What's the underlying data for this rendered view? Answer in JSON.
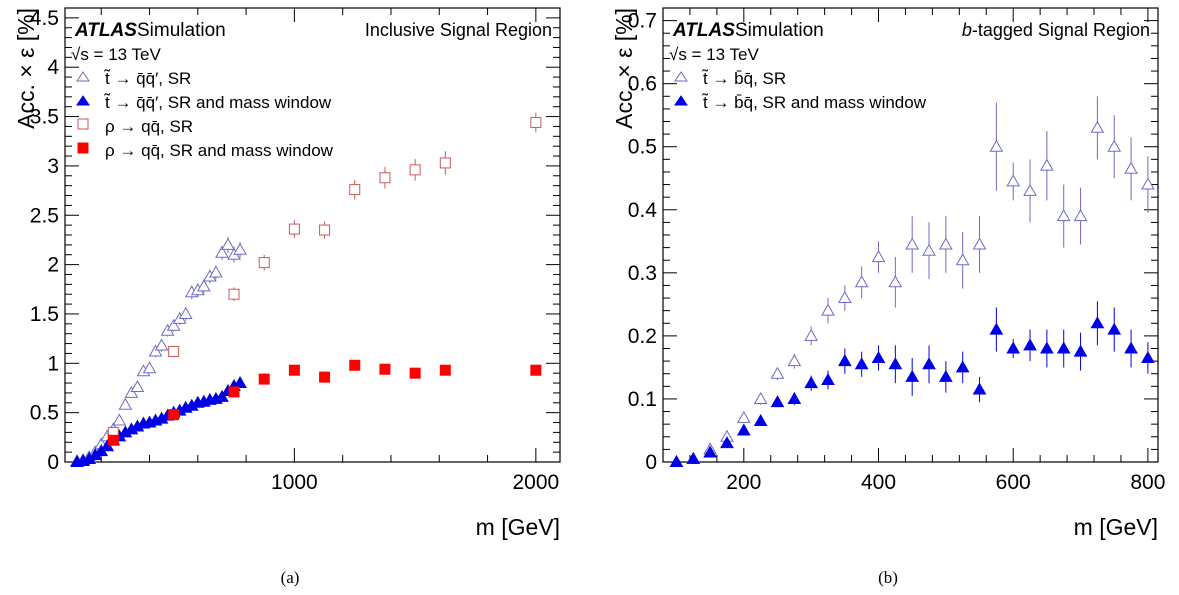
{
  "chart_data": [
    {
      "id": "a",
      "type": "scatter",
      "caption": "(a)",
      "xlabel": "m [GeV]",
      "ylabel": "Acc. × ε [%]",
      "xlim": [
        50,
        2100
      ],
      "ylim": [
        0,
        4.6
      ],
      "xticks": [
        {
          "v": 1000,
          "l": "1000"
        },
        {
          "v": 2000,
          "l": "2000"
        }
      ],
      "yticks": [
        {
          "v": 0,
          "l": "0"
        },
        {
          "v": 0.5,
          "l": "0.5"
        },
        {
          "v": 1,
          "l": "1"
        },
        {
          "v": 1.5,
          "l": "1.5"
        },
        {
          "v": 2,
          "l": "2"
        },
        {
          "v": 2.5,
          "l": "2.5"
        },
        {
          "v": 3,
          "l": "3"
        },
        {
          "v": 3.5,
          "l": "3.5"
        },
        {
          "v": 4,
          "l": "4"
        },
        {
          "v": 4.5,
          "l": "4.5"
        }
      ],
      "atlas_label": "ATLAS",
      "atlas_sublabel": "Simulation",
      "energy_label": "√s = 13 TeV",
      "region_label": "Inclusive Signal Region",
      "region_label_italic": "",
      "series": [
        {
          "name": "t̃ → q̄q̄′, SR",
          "marker": "triangle",
          "filled": false,
          "color": "#6b6bc4",
          "points": [
            [
              100,
              0.01,
              0.01
            ],
            [
              125,
              0.02,
              0.01
            ],
            [
              150,
              0.05,
              0.01
            ],
            [
              175,
              0.1,
              0.02
            ],
            [
              200,
              0.18,
              0.02
            ],
            [
              225,
              0.26,
              0.03
            ],
            [
              250,
              0.33,
              0.03
            ],
            [
              275,
              0.42,
              0.04
            ],
            [
              300,
              0.58,
              0.04
            ],
            [
              325,
              0.7,
              0.04
            ],
            [
              350,
              0.76,
              0.05
            ],
            [
              375,
              0.92,
              0.05
            ],
            [
              400,
              0.95,
              0.05
            ],
            [
              425,
              1.12,
              0.06
            ],
            [
              450,
              1.18,
              0.06
            ],
            [
              475,
              1.33,
              0.06
            ],
            [
              500,
              1.38,
              0.06
            ],
            [
              525,
              1.45,
              0.06
            ],
            [
              550,
              1.5,
              0.07
            ],
            [
              575,
              1.72,
              0.07
            ],
            [
              600,
              1.74,
              0.07
            ],
            [
              625,
              1.78,
              0.07
            ],
            [
              650,
              1.88,
              0.07
            ],
            [
              675,
              1.92,
              0.07
            ],
            [
              700,
              2.12,
              0.07
            ],
            [
              725,
              2.2,
              0.08
            ],
            [
              750,
              2.1,
              0.08
            ],
            [
              775,
              2.15,
              0.08
            ]
          ]
        },
        {
          "name": "t̃ → q̄q̄′, SR and mass window",
          "marker": "triangle",
          "filled": true,
          "color": "#0000e6",
          "points": [
            [
              100,
              0.0,
              0.0
            ],
            [
              125,
              0.01,
              0.0
            ],
            [
              150,
              0.03,
              0.01
            ],
            [
              175,
              0.07,
              0.01
            ],
            [
              200,
              0.11,
              0.01
            ],
            [
              225,
              0.16,
              0.02
            ],
            [
              250,
              0.22,
              0.02
            ],
            [
              275,
              0.26,
              0.02
            ],
            [
              300,
              0.3,
              0.02
            ],
            [
              325,
              0.33,
              0.02
            ],
            [
              350,
              0.36,
              0.02
            ],
            [
              375,
              0.39,
              0.02
            ],
            [
              400,
              0.4,
              0.03
            ],
            [
              425,
              0.42,
              0.03
            ],
            [
              450,
              0.44,
              0.03
            ],
            [
              475,
              0.47,
              0.03
            ],
            [
              500,
              0.5,
              0.03
            ],
            [
              525,
              0.52,
              0.03
            ],
            [
              550,
              0.55,
              0.03
            ],
            [
              575,
              0.57,
              0.03
            ],
            [
              600,
              0.6,
              0.03
            ],
            [
              625,
              0.61,
              0.03
            ],
            [
              650,
              0.63,
              0.03
            ],
            [
              675,
              0.64,
              0.03
            ],
            [
              700,
              0.66,
              0.04
            ],
            [
              725,
              0.72,
              0.04
            ],
            [
              750,
              0.77,
              0.04
            ],
            [
              775,
              0.8,
              0.04
            ]
          ]
        },
        {
          "name": "ρ → qq̄, SR",
          "marker": "square",
          "filled": false,
          "color": "#c85a5a",
          "points": [
            [
              250,
              0.3,
              0.05
            ],
            [
              500,
              1.12,
              0.05
            ],
            [
              750,
              1.7,
              0.07
            ],
            [
              875,
              2.02,
              0.08
            ],
            [
              1000,
              2.36,
              0.09
            ],
            [
              1125,
              2.35,
              0.09
            ],
            [
              1250,
              2.76,
              0.1
            ],
            [
              1375,
              2.88,
              0.11
            ],
            [
              1500,
              2.96,
              0.11
            ],
            [
              1625,
              3.03,
              0.12
            ],
            [
              2000,
              3.44,
              0.1
            ]
          ]
        },
        {
          "name": "ρ → qq̄, SR and mass window",
          "marker": "square",
          "filled": true,
          "color": "#ff0000",
          "points": [
            [
              250,
              0.22,
              0.03
            ],
            [
              500,
              0.48,
              0.03
            ],
            [
              750,
              0.71,
              0.04
            ],
            [
              875,
              0.84,
              0.04
            ],
            [
              1000,
              0.93,
              0.04
            ],
            [
              1125,
              0.86,
              0.04
            ],
            [
              1250,
              0.98,
              0.04
            ],
            [
              1375,
              0.94,
              0.04
            ],
            [
              1500,
              0.9,
              0.04
            ],
            [
              1625,
              0.93,
              0.04
            ],
            [
              2000,
              0.93,
              0.03
            ]
          ]
        }
      ]
    },
    {
      "id": "b",
      "type": "scatter",
      "caption": "(b)",
      "xlabel": "m [GeV]",
      "ylabel": "Acc. × ε [%]",
      "xlim": [
        80,
        815
      ],
      "ylim": [
        0,
        0.72
      ],
      "xticks": [
        {
          "v": 200,
          "l": "200"
        },
        {
          "v": 400,
          "l": "400"
        },
        {
          "v": 600,
          "l": "600"
        },
        {
          "v": 800,
          "l": "800"
        }
      ],
      "yticks": [
        {
          "v": 0,
          "l": "0"
        },
        {
          "v": 0.1,
          "l": "0.1"
        },
        {
          "v": 0.2,
          "l": "0.2"
        },
        {
          "v": 0.3,
          "l": "0.3"
        },
        {
          "v": 0.4,
          "l": "0.4"
        },
        {
          "v": 0.5,
          "l": "0.5"
        },
        {
          "v": 0.6,
          "l": "0.6"
        },
        {
          "v": 0.7,
          "l": "0.7"
        }
      ],
      "atlas_label": "ATLAS",
      "atlas_sublabel": "Simulation",
      "energy_label": "√s = 13 TeV",
      "region_label": "-tagged Signal Region",
      "region_label_italic": "b",
      "series": [
        {
          "name": "t̃ → b̄q̄, SR",
          "marker": "triangle",
          "filled": false,
          "color": "#6b6bc4",
          "points": [
            [
              100,
              0.0,
              0.003
            ],
            [
              125,
              0.005,
              0.004
            ],
            [
              150,
              0.02,
              0.005
            ],
            [
              175,
              0.04,
              0.006
            ],
            [
              200,
              0.07,
              0.008
            ],
            [
              225,
              0.1,
              0.009
            ],
            [
              250,
              0.14,
              0.01
            ],
            [
              275,
              0.16,
              0.012
            ],
            [
              300,
              0.2,
              0.015
            ],
            [
              325,
              0.24,
              0.02
            ],
            [
              350,
              0.26,
              0.02
            ],
            [
              375,
              0.285,
              0.025
            ],
            [
              400,
              0.325,
              0.025
            ],
            [
              425,
              0.285,
              0.04
            ],
            [
              450,
              0.345,
              0.045
            ],
            [
              475,
              0.335,
              0.045
            ],
            [
              500,
              0.345,
              0.045
            ],
            [
              525,
              0.32,
              0.045
            ],
            [
              550,
              0.345,
              0.045
            ],
            [
              575,
              0.5,
              0.07
            ],
            [
              600,
              0.445,
              0.03
            ],
            [
              625,
              0.43,
              0.05
            ],
            [
              650,
              0.47,
              0.055
            ],
            [
              675,
              0.39,
              0.05
            ],
            [
              700,
              0.39,
              0.045
            ],
            [
              725,
              0.53,
              0.05
            ],
            [
              750,
              0.5,
              0.05
            ],
            [
              775,
              0.465,
              0.05
            ],
            [
              800,
              0.44,
              0.045
            ]
          ]
        },
        {
          "name": "t̃ → b̄q̄, SR and mass window",
          "marker": "triangle",
          "filled": true,
          "color": "#0000e6",
          "points": [
            [
              100,
              0.0,
              0.002
            ],
            [
              125,
              0.005,
              0.003
            ],
            [
              150,
              0.015,
              0.004
            ],
            [
              175,
              0.03,
              0.005
            ],
            [
              200,
              0.05,
              0.006
            ],
            [
              225,
              0.065,
              0.007
            ],
            [
              250,
              0.095,
              0.008
            ],
            [
              275,
              0.1,
              0.01
            ],
            [
              300,
              0.125,
              0.012
            ],
            [
              325,
              0.13,
              0.015
            ],
            [
              350,
              0.16,
              0.02
            ],
            [
              375,
              0.155,
              0.02
            ],
            [
              400,
              0.165,
              0.02
            ],
            [
              425,
              0.155,
              0.03
            ],
            [
              450,
              0.135,
              0.03
            ],
            [
              475,
              0.155,
              0.03
            ],
            [
              500,
              0.135,
              0.025
            ],
            [
              525,
              0.15,
              0.025
            ],
            [
              550,
              0.115,
              0.02
            ],
            [
              575,
              0.21,
              0.035
            ],
            [
              600,
              0.18,
              0.015
            ],
            [
              625,
              0.185,
              0.025
            ],
            [
              650,
              0.18,
              0.03
            ],
            [
              675,
              0.18,
              0.03
            ],
            [
              700,
              0.175,
              0.03
            ],
            [
              725,
              0.22,
              0.035
            ],
            [
              750,
              0.21,
              0.035
            ],
            [
              775,
              0.18,
              0.03
            ],
            [
              800,
              0.165,
              0.025
            ]
          ]
        }
      ]
    }
  ]
}
